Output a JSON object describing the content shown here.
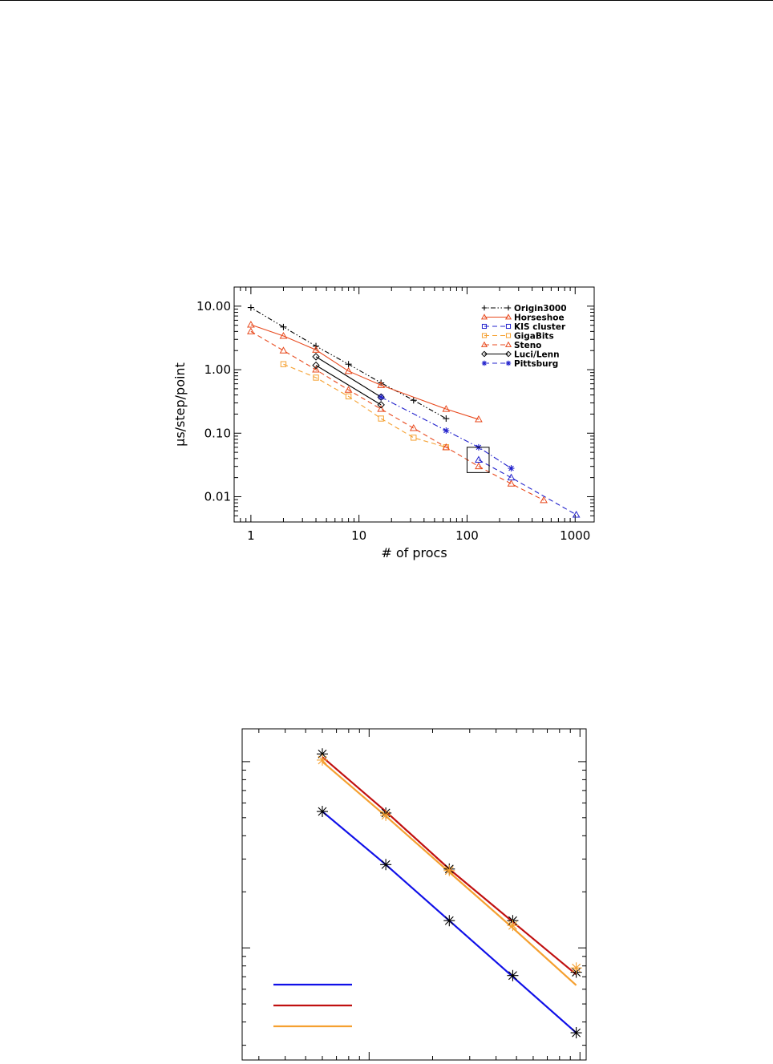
{
  "chart_data": [
    {
      "type": "line",
      "title": "",
      "xlabel": "# of procs",
      "ylabel": "μs/step/point",
      "xscale": "log",
      "yscale": "log",
      "xlim": [
        0.7,
        1500
      ],
      "ylim": [
        0.004,
        20
      ],
      "xticks": [
        1,
        10,
        100,
        1000
      ],
      "xtick_labels": [
        "1",
        "10",
        "100",
        "1000"
      ],
      "yticks": [
        0.01,
        0.1,
        1,
        10
      ],
      "ytick_labels": [
        "0.01",
        "0.10",
        "1.00",
        "10.00"
      ],
      "legend_position": "top-right",
      "annotations": [
        {
          "type": "box",
          "x_range": [
            100,
            160
          ],
          "y_range": [
            0.024,
            0.06
          ]
        }
      ],
      "series": [
        {
          "name": "Origin3000",
          "color": "#000000",
          "marker": "plus",
          "dash": "dash-dot-dot",
          "legend_line": "dash-dot-dot",
          "x": [
            1,
            2,
            4,
            8,
            16,
            32,
            64
          ],
          "y": [
            9.5,
            4.7,
            2.35,
            1.22,
            0.62,
            0.33,
            0.17
          ]
        },
        {
          "name": "Horseshoe",
          "color": "#e8491d",
          "marker": "triangle",
          "dash": "solid",
          "legend_line": "solid",
          "x": [
            1,
            2,
            4,
            8,
            16,
            64,
            128
          ],
          "y": [
            5.1,
            3.4,
            2.05,
            0.95,
            0.57,
            0.24,
            0.165
          ]
        },
        {
          "name": "KIS cluster",
          "color": "#2222cc",
          "marker": "square",
          "dash": "dash",
          "legend_line": "dash",
          "x": [],
          "y": []
        },
        {
          "name": "GigaBits",
          "color": "#f5a030",
          "marker": "square",
          "dash": "dash",
          "legend_line": "dash",
          "x": [
            2,
            4,
            8,
            16,
            32,
            64
          ],
          "y": [
            1.22,
            0.75,
            0.38,
            0.17,
            0.085,
            0.06
          ]
        },
        {
          "name": "Steno",
          "color": "#e8491d",
          "marker": "triangle",
          "dash": "dash",
          "legend_line": "dash",
          "x": [
            1,
            2,
            4,
            8,
            16,
            32,
            64,
            128,
            256,
            512
          ],
          "y": [
            4.0,
            2.0,
            1.0,
            0.48,
            0.24,
            0.12,
            0.06,
            0.03,
            0.016,
            0.0088
          ]
        },
        {
          "name": "Luci/Lenn",
          "color": "#000000",
          "marker": "diamond",
          "dash": "solid",
          "legend_line": "solid",
          "segments": [
            {
              "x": [
                4,
                16
              ],
              "y": [
                1.6,
                0.37
              ]
            },
            {
              "x": [
                4,
                16
              ],
              "y": [
                1.17,
                0.28
              ]
            }
          ]
        },
        {
          "name": "Pittsburg",
          "color": "#2222cc",
          "marker": "asterisk",
          "dash": "dash-dot",
          "legend_line": "dash",
          "x": [
            16,
            64,
            128,
            256
          ],
          "y": [
            0.37,
            0.11,
            0.06,
            0.028
          ]
        },
        {
          "name": "",
          "color": "#2222cc",
          "marker": "triangle",
          "dash": "dash",
          "x": [
            128,
            256,
            1024
          ],
          "y": [
            0.038,
            0.02,
            0.0052
          ]
        }
      ]
    },
    {
      "type": "line",
      "title": "",
      "xlabel": "",
      "ylabel": "",
      "xscale": "log",
      "yscale": "log",
      "xlim": [
        0.25,
        10.7
      ],
      "ylim": [
        0.25,
        15
      ],
      "legend_position": "bottom-left",
      "series": [
        {
          "name": "",
          "color": "#1010e8",
          "x": [
            0.6,
            1.2,
            2.4,
            4.8,
            9.6
          ],
          "y": [
            5.4,
            2.8,
            1.4,
            0.7,
            0.35
          ]
        },
        {
          "name": "",
          "color": "#c01010",
          "x": [
            0.6,
            1.2,
            2.4,
            4.8,
            9.6
          ],
          "y": [
            10.6,
            5.4,
            2.65,
            1.38,
            0.72
          ]
        },
        {
          "name": "",
          "color": "#f5a030",
          "x": [
            0.6,
            1.2,
            2.4,
            4.8,
            9.6
          ],
          "y": [
            10.0,
            5.1,
            2.55,
            1.28,
            0.63
          ]
        }
      ],
      "markers": [
        {
          "color": "#000000",
          "x": [
            0.6,
            1.2,
            2.4,
            4.8,
            9.6
          ],
          "y": [
            5.4,
            2.8,
            1.4,
            0.71,
            0.35
          ]
        },
        {
          "color": "#000000",
          "x": [
            0.6,
            1.2,
            2.4,
            4.8,
            9.6
          ],
          "y": [
            11.0,
            5.3,
            2.65,
            1.4,
            0.74
          ]
        },
        {
          "color": "#f5a030",
          "x": [
            0.6,
            1.2,
            2.4,
            4.8,
            9.6
          ],
          "y": [
            10.2,
            5.15,
            2.6,
            1.32,
            0.78
          ]
        }
      ]
    }
  ]
}
